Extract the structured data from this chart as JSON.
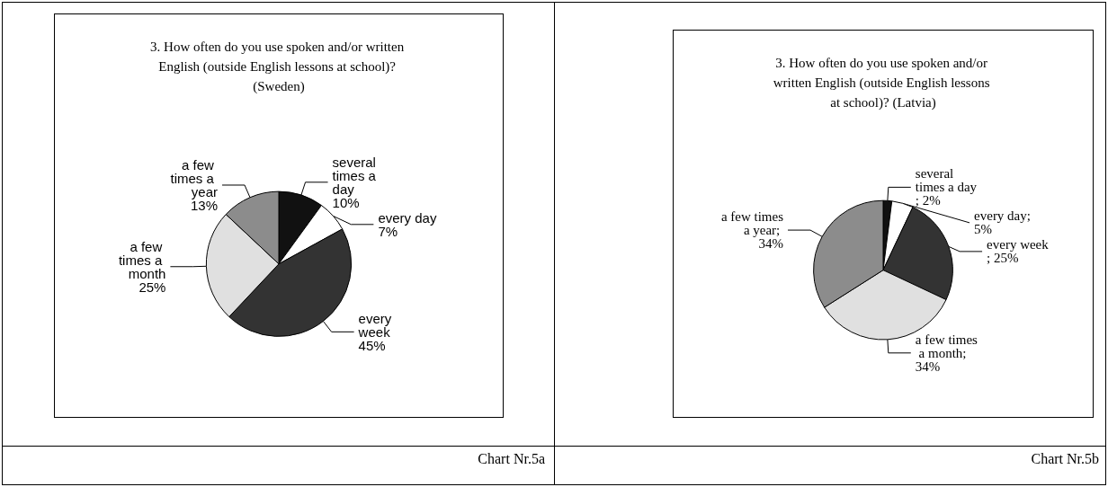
{
  "chart_data": [
    {
      "type": "pie",
      "title": "3. How often do you use spoken and/or written English (outside English lessons at school)? (Sweden)",
      "categories": [
        "several times a day",
        "every day",
        "every week",
        "a few times a month",
        "a few times a year"
      ],
      "values": [
        10,
        7,
        45,
        25,
        13
      ],
      "value_labels": [
        "10%",
        "7%",
        "45%",
        "25%",
        "13%"
      ],
      "colors": [
        "#111111",
        "#ffffff",
        "#333333",
        "#e0e0e0",
        "#8c8c8c"
      ],
      "legend": false,
      "annotations": [
        "Chart Nr.5a"
      ]
    },
    {
      "type": "pie",
      "title": "3. How often do you use spoken and/or written English (outside English lessons at school)? (Latvia)",
      "categories": [
        "several times a day",
        "every day",
        "every week",
        "a few times a month",
        "a few times a year"
      ],
      "values": [
        2,
        5,
        25,
        34,
        34
      ],
      "value_labels": [
        "; 2%",
        "; 5%",
        "; 25%",
        "; 34%",
        "; 34%"
      ],
      "colors": [
        "#111111",
        "#ffffff",
        "#333333",
        "#e0e0e0",
        "#8c8c8c"
      ],
      "legend": false,
      "annotations": [
        "Chart Nr.5b"
      ]
    }
  ]
}
